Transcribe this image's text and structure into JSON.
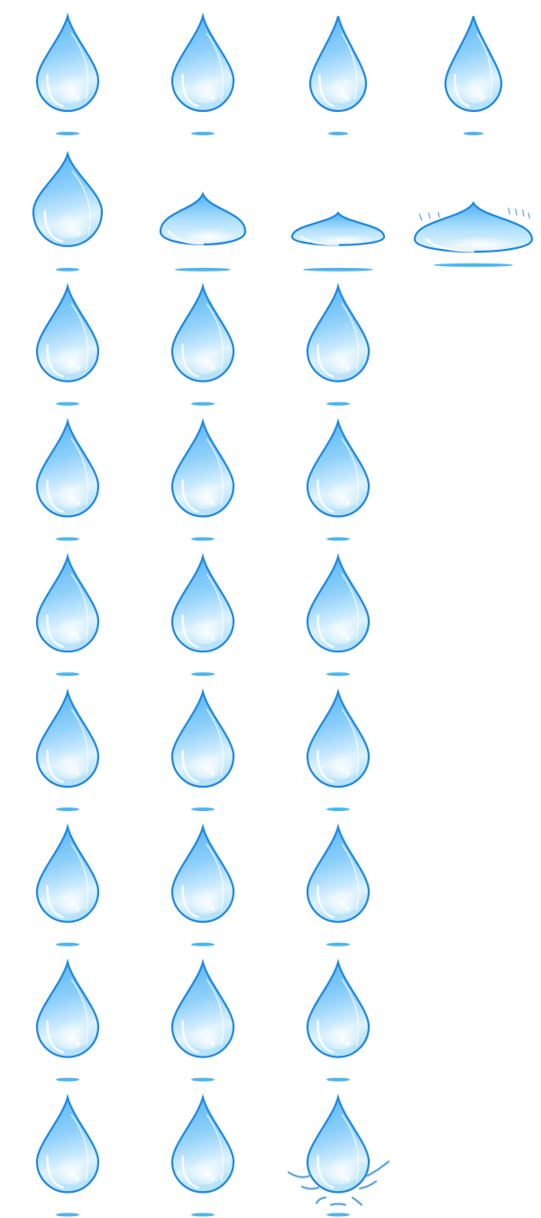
{
  "sheet": {
    "background": "#ffffff",
    "colors": {
      "outline": "#1e88e5",
      "outline_dark": "#0d6fd6",
      "body_top": "#4fb3f6",
      "body_mid": "#a9dcfb",
      "body_bottom": "#e8f6ff",
      "shadow": "#4fb6ee",
      "splash": "#5aa6e0"
    },
    "rows": [
      {
        "row": 1,
        "frames": [
          {
            "shape": "drop",
            "squash": 0
          },
          {
            "shape": "drop",
            "squash": 0
          },
          {
            "shape": "drop-slim",
            "squash": 0
          },
          {
            "shape": "drop-slim",
            "squash": 0
          }
        ]
      },
      {
        "row": 2,
        "frames": [
          {
            "shape": "drop-wide",
            "squash": 0.1
          },
          {
            "shape": "squash",
            "squash": 0.45
          },
          {
            "shape": "squash",
            "squash": 0.65
          },
          {
            "shape": "squash-splash",
            "squash": 0.85
          }
        ]
      },
      {
        "row": 3,
        "frames": [
          {
            "shape": "drop",
            "squash": 0
          },
          {
            "shape": "drop",
            "squash": 0
          },
          {
            "shape": "drop",
            "squash": 0
          }
        ]
      },
      {
        "row": 4,
        "frames": [
          {
            "shape": "drop",
            "squash": 0
          },
          {
            "shape": "drop",
            "squash": 0
          },
          {
            "shape": "drop",
            "squash": 0
          }
        ]
      },
      {
        "row": 5,
        "frames": [
          {
            "shape": "drop",
            "squash": 0
          },
          {
            "shape": "drop",
            "squash": 0
          },
          {
            "shape": "drop",
            "squash": 0
          }
        ]
      },
      {
        "row": 6,
        "frames": [
          {
            "shape": "drop",
            "squash": 0
          },
          {
            "shape": "drop",
            "squash": 0
          },
          {
            "shape": "drop",
            "squash": 0
          }
        ]
      },
      {
        "row": 7,
        "frames": [
          {
            "shape": "drop",
            "squash": 0
          },
          {
            "shape": "drop",
            "squash": 0
          },
          {
            "shape": "drop",
            "squash": 0
          }
        ]
      },
      {
        "row": 8,
        "frames": [
          {
            "shape": "drop",
            "squash": 0
          },
          {
            "shape": "drop",
            "squash": 0
          },
          {
            "shape": "drop",
            "squash": 0
          }
        ]
      },
      {
        "row": 9,
        "frames": [
          {
            "shape": "drop",
            "squash": 0
          },
          {
            "shape": "drop",
            "squash": 0
          },
          {
            "shape": "drop-impact",
            "squash": 0
          }
        ]
      }
    ]
  }
}
